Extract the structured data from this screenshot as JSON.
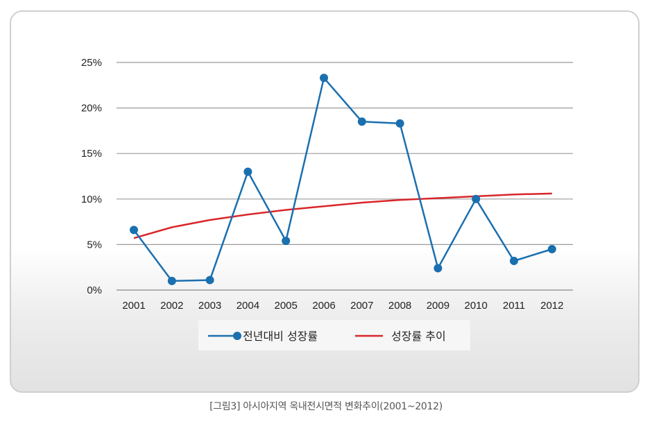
{
  "chart_data": {
    "type": "line",
    "categories": [
      "2001",
      "2002",
      "2003",
      "2004",
      "2005",
      "2006",
      "2007",
      "2008",
      "2009",
      "2010",
      "2011",
      "2012"
    ],
    "y_ticks": [
      "0%",
      "5%",
      "10%",
      "15%",
      "20%",
      "25%"
    ],
    "ylim": [
      0,
      25
    ],
    "grid": true,
    "legend_position": "bottom",
    "series": [
      {
        "name": "전년대비 성장률",
        "values": [
          6.6,
          1.0,
          1.1,
          13.0,
          5.4,
          23.3,
          18.5,
          18.3,
          2.4,
          10.0,
          3.2,
          4.5
        ],
        "color": "#1a6faf",
        "markers": true
      },
      {
        "name": "성장률 추이",
        "values": [
          5.7,
          6.9,
          7.7,
          8.3,
          8.8,
          9.2,
          9.6,
          9.9,
          10.1,
          10.3,
          10.5,
          10.6
        ],
        "color": "#d9262a",
        "markers": false
      }
    ]
  },
  "caption": "[그림3] 아시아지역 옥내전시면적 변화추이(2001~2012)"
}
